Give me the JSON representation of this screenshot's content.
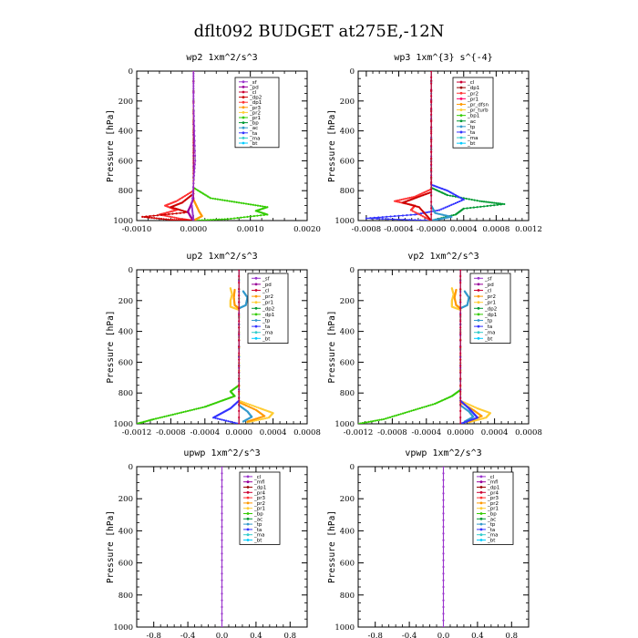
{
  "figure_title": "dflt092  BUDGET at275E,-12N",
  "chart_data": [
    {
      "type": "line",
      "title": "wp2  1xm^2/s^3",
      "ylabel": "Pressure [hPa]",
      "xlim": [
        -0.001,
        0.002
      ],
      "ylim": [
        1000,
        0
      ],
      "xticks": [
        -0.001,
        0.0,
        0.001,
        0.002
      ],
      "xtick_labels": [
        "-0.0010",
        "0.0000",
        "0.0010",
        "0.0020"
      ],
      "yticks": [
        0,
        200,
        400,
        600,
        800,
        1000
      ],
      "ytick_labels": [
        "0",
        "200",
        "400",
        "600",
        "800",
        "1000"
      ],
      "legend": [
        "_sf",
        "_pd",
        "_cl",
        "_dp2",
        "_dp1",
        "_pr3",
        "_pr2",
        "_pr1",
        "_bp",
        "_ac",
        "_ta",
        "_ma",
        "_bt"
      ],
      "legend_colors": [
        "#9933cc",
        "#990099",
        "#cc0033",
        "#cc0000",
        "#ff3333",
        "#ff9900",
        "#ffcc33",
        "#33cc00",
        "#009933",
        "#3399cc",
        "#3333ff",
        "#33cccc",
        "#00ccff"
      ],
      "series": [
        {
          "color": "#33cc00",
          "x": [
            0,
            0,
            0.0003,
            0.0008,
            0.0013,
            0.0011,
            0.0013,
            0.0006,
            0
          ],
          "y": [
            0,
            780,
            850,
            880,
            910,
            935,
            960,
            990,
            1000
          ]
        },
        {
          "color": "#ff3333",
          "x": [
            0,
            0,
            -0.0003,
            -0.0005,
            -0.0003,
            -0.0006,
            -0.0002,
            0
          ],
          "y": [
            0,
            800,
            870,
            900,
            930,
            960,
            990,
            1000
          ]
        },
        {
          "color": "#cc0000",
          "x": [
            0,
            0,
            -0.0002,
            -0.0004,
            -0.0001,
            -0.0009,
            -0.0004,
            0
          ],
          "y": [
            0,
            820,
            880,
            910,
            945,
            975,
            995,
            1000
          ]
        },
        {
          "color": "#ff9900",
          "x": [
            0,
            0,
            5e-05,
            0.0001,
            0.00015,
            5e-05,
            0
          ],
          "y": [
            0,
            860,
            900,
            940,
            970,
            990,
            1000
          ]
        },
        {
          "color": "#990099",
          "x": [
            0,
            0,
            -5e-05,
            -0.0001,
            -5e-05,
            0
          ],
          "y": [
            0,
            850,
            900,
            940,
            975,
            1000
          ]
        },
        {
          "color": "#9933cc",
          "x": [
            0,
            0,
            3e-05,
            -3e-05,
            0
          ],
          "y": [
            0,
            200,
            600,
            900,
            1000
          ]
        }
      ]
    },
    {
      "type": "line",
      "title": "wp3  1xm^{3} s^{-4}",
      "ylabel": "Pressure [hPa]",
      "xlim": [
        -0.0009,
        0.0012
      ],
      "ylim": [
        1000,
        0
      ],
      "xticks": [
        -0.0008,
        -0.0004,
        0.0,
        0.0004,
        0.0008,
        0.0012
      ],
      "xtick_labels": [
        "-0.0008",
        "-0.0004",
        "-0.0000",
        "0.0004",
        "0.0008",
        "0.0012"
      ],
      "yticks": [
        0,
        200,
        400,
        600,
        800,
        1000
      ],
      "ytick_labels": [
        "0",
        "200",
        "400",
        "600",
        "800",
        "1000"
      ],
      "legend": [
        "_cl",
        "_dp1",
        "_pr2",
        "_pr1",
        "_pr_dfsn",
        "_pr_turb",
        "_bp1",
        "_ac",
        "_tp",
        "_ta",
        "_ma",
        "_bt"
      ],
      "legend_colors": [
        "#cc0033",
        "#990000",
        "#ff3333",
        "#ff0066",
        "#ff9900",
        "#ffcc33",
        "#33cc00",
        "#009933",
        "#3399cc",
        "#3333ff",
        "#33cccc",
        "#00ccff"
      ],
      "series": [
        {
          "color": "#009933",
          "x": [
            0,
            0,
            0.0002,
            0.0006,
            0.0009,
            0.0004,
            0.0003,
            0
          ],
          "y": [
            0,
            780,
            830,
            870,
            890,
            920,
            960,
            1000
          ]
        },
        {
          "color": "#3333ff",
          "x": [
            0,
            0,
            0.0002,
            0.0004,
            0.0001,
            -0.0002,
            -0.0008,
            0
          ],
          "y": [
            0,
            760,
            800,
            860,
            930,
            960,
            985,
            1000
          ]
        },
        {
          "color": "#ff3333",
          "x": [
            0,
            0,
            -0.0002,
            -0.00045,
            -0.0002,
            -0.00025,
            0
          ],
          "y": [
            0,
            790,
            840,
            870,
            900,
            930,
            1000
          ]
        },
        {
          "color": "#cc0000",
          "x": [
            0,
            0,
            -0.0002,
            -0.00035,
            -0.00015,
            0
          ],
          "y": [
            0,
            810,
            850,
            880,
            910,
            1000
          ]
        },
        {
          "color": "#3399cc",
          "x": [
            0,
            0,
            5e-05,
            0.00025,
            0.0001,
            0
          ],
          "y": [
            0,
            900,
            950,
            975,
            990,
            1000
          ]
        },
        {
          "color": "#cc0033",
          "x": [
            0,
            0,
            0
          ],
          "y": [
            0,
            500,
            1000
          ]
        }
      ]
    },
    {
      "type": "line",
      "title": "up2  1xm^2/s^3",
      "ylabel": "Pressure [hPa]",
      "xlim": [
        -0.0012,
        0.0008
      ],
      "ylim": [
        1000,
        0
      ],
      "xticks": [
        -0.0012,
        -0.0008,
        -0.0004,
        0.0,
        0.0004,
        0.0008
      ],
      "xtick_labels": [
        "-0.0012",
        "-0.0008",
        "-0.0004",
        "0.0000",
        "0.0004",
        "0.0008"
      ],
      "yticks": [
        0,
        200,
        400,
        600,
        800,
        1000
      ],
      "ytick_labels": [
        "0",
        "200",
        "400",
        "600",
        "800",
        "1000"
      ],
      "legend": [
        "_sf",
        "_pd",
        "_cl",
        "_pr2",
        "_pr1",
        "_dp2",
        "_dp1",
        "_tp",
        "_ta",
        "_ma",
        "_bt"
      ],
      "legend_colors": [
        "#9933cc",
        "#990099",
        "#cc0033",
        "#ff9900",
        "#ffcc33",
        "#009933",
        "#33cc00",
        "#3399cc",
        "#3333ff",
        "#33cccc",
        "#00ccff"
      ],
      "series": [
        {
          "color": "#33cc00",
          "x": [
            0,
            0,
            -0.0001,
            -5e-05,
            -0.0002,
            -0.0004,
            -0.0007,
            -0.001,
            -0.0012
          ],
          "y": [
            0,
            750,
            790,
            820,
            850,
            890,
            930,
            970,
            1000
          ]
        },
        {
          "color": "#ffcc33",
          "x": [
            -0.0001,
            -8e-05,
            -0.0001,
            -0.0001,
            0,
            0,
            0.00025,
            0.0004,
            0.00035,
            0.0001
          ],
          "y": [
            120,
            160,
            200,
            240,
            260,
            850,
            900,
            930,
            960,
            990
          ]
        },
        {
          "color": "#ff9900",
          "x": [
            -5e-05,
            -6e-05,
            -5e-05,
            0,
            0,
            0.0002,
            0.0003,
            0.0001
          ],
          "y": [
            130,
            180,
            230,
            250,
            860,
            910,
            950,
            985
          ]
        },
        {
          "color": "#3399cc",
          "x": [
            5e-05,
            0.0001,
            8e-05,
            0,
            0,
            0.0001,
            0.00015,
            5e-05
          ],
          "y": [
            140,
            180,
            230,
            250,
            880,
            920,
            955,
            985
          ]
        },
        {
          "color": "#3333ff",
          "x": [
            0,
            0,
            -0.0001,
            -0.0002,
            -0.0003,
            0
          ],
          "y": [
            0,
            850,
            900,
            930,
            960,
            1000
          ]
        },
        {
          "color": "#cc0033",
          "x": [
            0,
            0,
            0
          ],
          "y": [
            0,
            500,
            1000
          ]
        }
      ]
    },
    {
      "type": "line",
      "title": "vp2  1xm^2/s^3",
      "ylabel": "Pressure [hPa]",
      "xlim": [
        -0.0012,
        0.0008
      ],
      "ylim": [
        1000,
        0
      ],
      "xticks": [
        -0.0012,
        -0.0008,
        -0.0004,
        0.0,
        0.0004,
        0.0008
      ],
      "xtick_labels": [
        "-0.0012",
        "-0.0008",
        "-0.0004",
        "0.0000",
        "0.0004",
        "0.0008"
      ],
      "yticks": [
        0,
        200,
        400,
        600,
        800,
        1000
      ],
      "ytick_labels": [
        "0",
        "200",
        "400",
        "600",
        "800",
        "1000"
      ],
      "legend": [
        "_sf",
        "_pd",
        "_cl",
        "_pr2",
        "_pr1",
        "_dp2",
        "_dp1",
        "_tp",
        "_ta",
        "_ma",
        "_bt"
      ],
      "legend_colors": [
        "#9933cc",
        "#990099",
        "#cc0033",
        "#ff9900",
        "#ffcc33",
        "#009933",
        "#33cc00",
        "#3399cc",
        "#3333ff",
        "#33cccc",
        "#00ccff"
      ],
      "series": [
        {
          "color": "#33cc00",
          "x": [
            0,
            0,
            -0.0001,
            -0.0003,
            -0.0006,
            -0.0009,
            -0.0012
          ],
          "y": [
            0,
            780,
            820,
            870,
            920,
            970,
            1000
          ]
        },
        {
          "color": "#ffcc33",
          "x": [
            -0.0001,
            -8e-05,
            -0.0001,
            -0.0001,
            0,
            0,
            0.0002,
            0.00035,
            0.0003,
            0.0001
          ],
          "y": [
            120,
            160,
            200,
            240,
            260,
            850,
            900,
            930,
            960,
            990
          ]
        },
        {
          "color": "#ff9900",
          "x": [
            -5e-05,
            -7e-05,
            -5e-05,
            0,
            0,
            0.00015,
            0.00025,
            0.0001
          ],
          "y": [
            130,
            180,
            230,
            250,
            860,
            910,
            950,
            985
          ]
        },
        {
          "color": "#3399cc",
          "x": [
            5e-05,
            0.0001,
            8e-05,
            0,
            0,
            0.0001,
            0.00015,
            5e-05
          ],
          "y": [
            140,
            180,
            230,
            250,
            880,
            920,
            955,
            985
          ]
        },
        {
          "color": "#3333ff",
          "x": [
            0,
            0,
            0.0001,
            0.00015,
            0.0002,
            0
          ],
          "y": [
            0,
            850,
            900,
            930,
            960,
            1000
          ]
        },
        {
          "color": "#cc0033",
          "x": [
            0,
            0,
            0
          ],
          "y": [
            0,
            500,
            1000
          ]
        }
      ]
    },
    {
      "type": "line",
      "title": "upwp  1xm^2/s^3",
      "ylabel": "Pressure [hPa]",
      "xlim": [
        -1.0,
        1.0
      ],
      "ylim": [
        1000,
        0
      ],
      "xticks": [
        -0.8,
        -0.4,
        0.0,
        0.4,
        0.8
      ],
      "xtick_labels": [
        "-0.8",
        "-0.4",
        "0.0",
        "0.4",
        "0.8"
      ],
      "yticks": [
        0,
        200,
        400,
        600,
        800,
        1000
      ],
      "ytick_labels": [
        "0",
        "200",
        "400",
        "600",
        "800",
        "1000"
      ],
      "legend": [
        "_cl",
        "_mfl",
        "_dp1",
        "_pr4",
        "_pr3",
        "_pr2",
        "_pr1",
        "_bp",
        "_ac",
        "_tp",
        "_ta",
        "_ma",
        "_bt"
      ],
      "legend_colors": [
        "#9933cc",
        "#990099",
        "#990000",
        "#cc0033",
        "#ff3333",
        "#ff9900",
        "#ffcc33",
        "#33cc00",
        "#009933",
        "#3399cc",
        "#3333ff",
        "#33cccc",
        "#00ccff"
      ],
      "series": [
        {
          "color": "#9933cc",
          "x": [
            0,
            0,
            0
          ],
          "y": [
            0,
            500,
            1000
          ]
        }
      ]
    },
    {
      "type": "line",
      "title": "vpwp  1xm^2/s^3",
      "ylabel": "Pressure [hPa]",
      "xlim": [
        -1.0,
        1.0
      ],
      "ylim": [
        1000,
        0
      ],
      "xticks": [
        -0.8,
        -0.4,
        0.0,
        0.4,
        0.8
      ],
      "xtick_labels": [
        "-0.8",
        "-0.4",
        "0.0",
        "0.4",
        "0.8"
      ],
      "yticks": [
        0,
        200,
        400,
        600,
        800,
        1000
      ],
      "ytick_labels": [
        "0",
        "200",
        "400",
        "600",
        "800",
        "1000"
      ],
      "legend": [
        "_cl",
        "_mfl",
        "_dp1",
        "_pr4",
        "_pr3",
        "_pr2",
        "_pr1",
        "_bp",
        "_ac",
        "_tp",
        "_ta",
        "_ma",
        "_bt"
      ],
      "legend_colors": [
        "#9933cc",
        "#990099",
        "#990000",
        "#cc0033",
        "#ff3333",
        "#ff9900",
        "#ffcc33",
        "#33cc00",
        "#009933",
        "#3399cc",
        "#3333ff",
        "#33cccc",
        "#00ccff"
      ],
      "series": [
        {
          "color": "#9933cc",
          "x": [
            0,
            0,
            0
          ],
          "y": [
            0,
            500,
            1000
          ]
        }
      ]
    }
  ]
}
